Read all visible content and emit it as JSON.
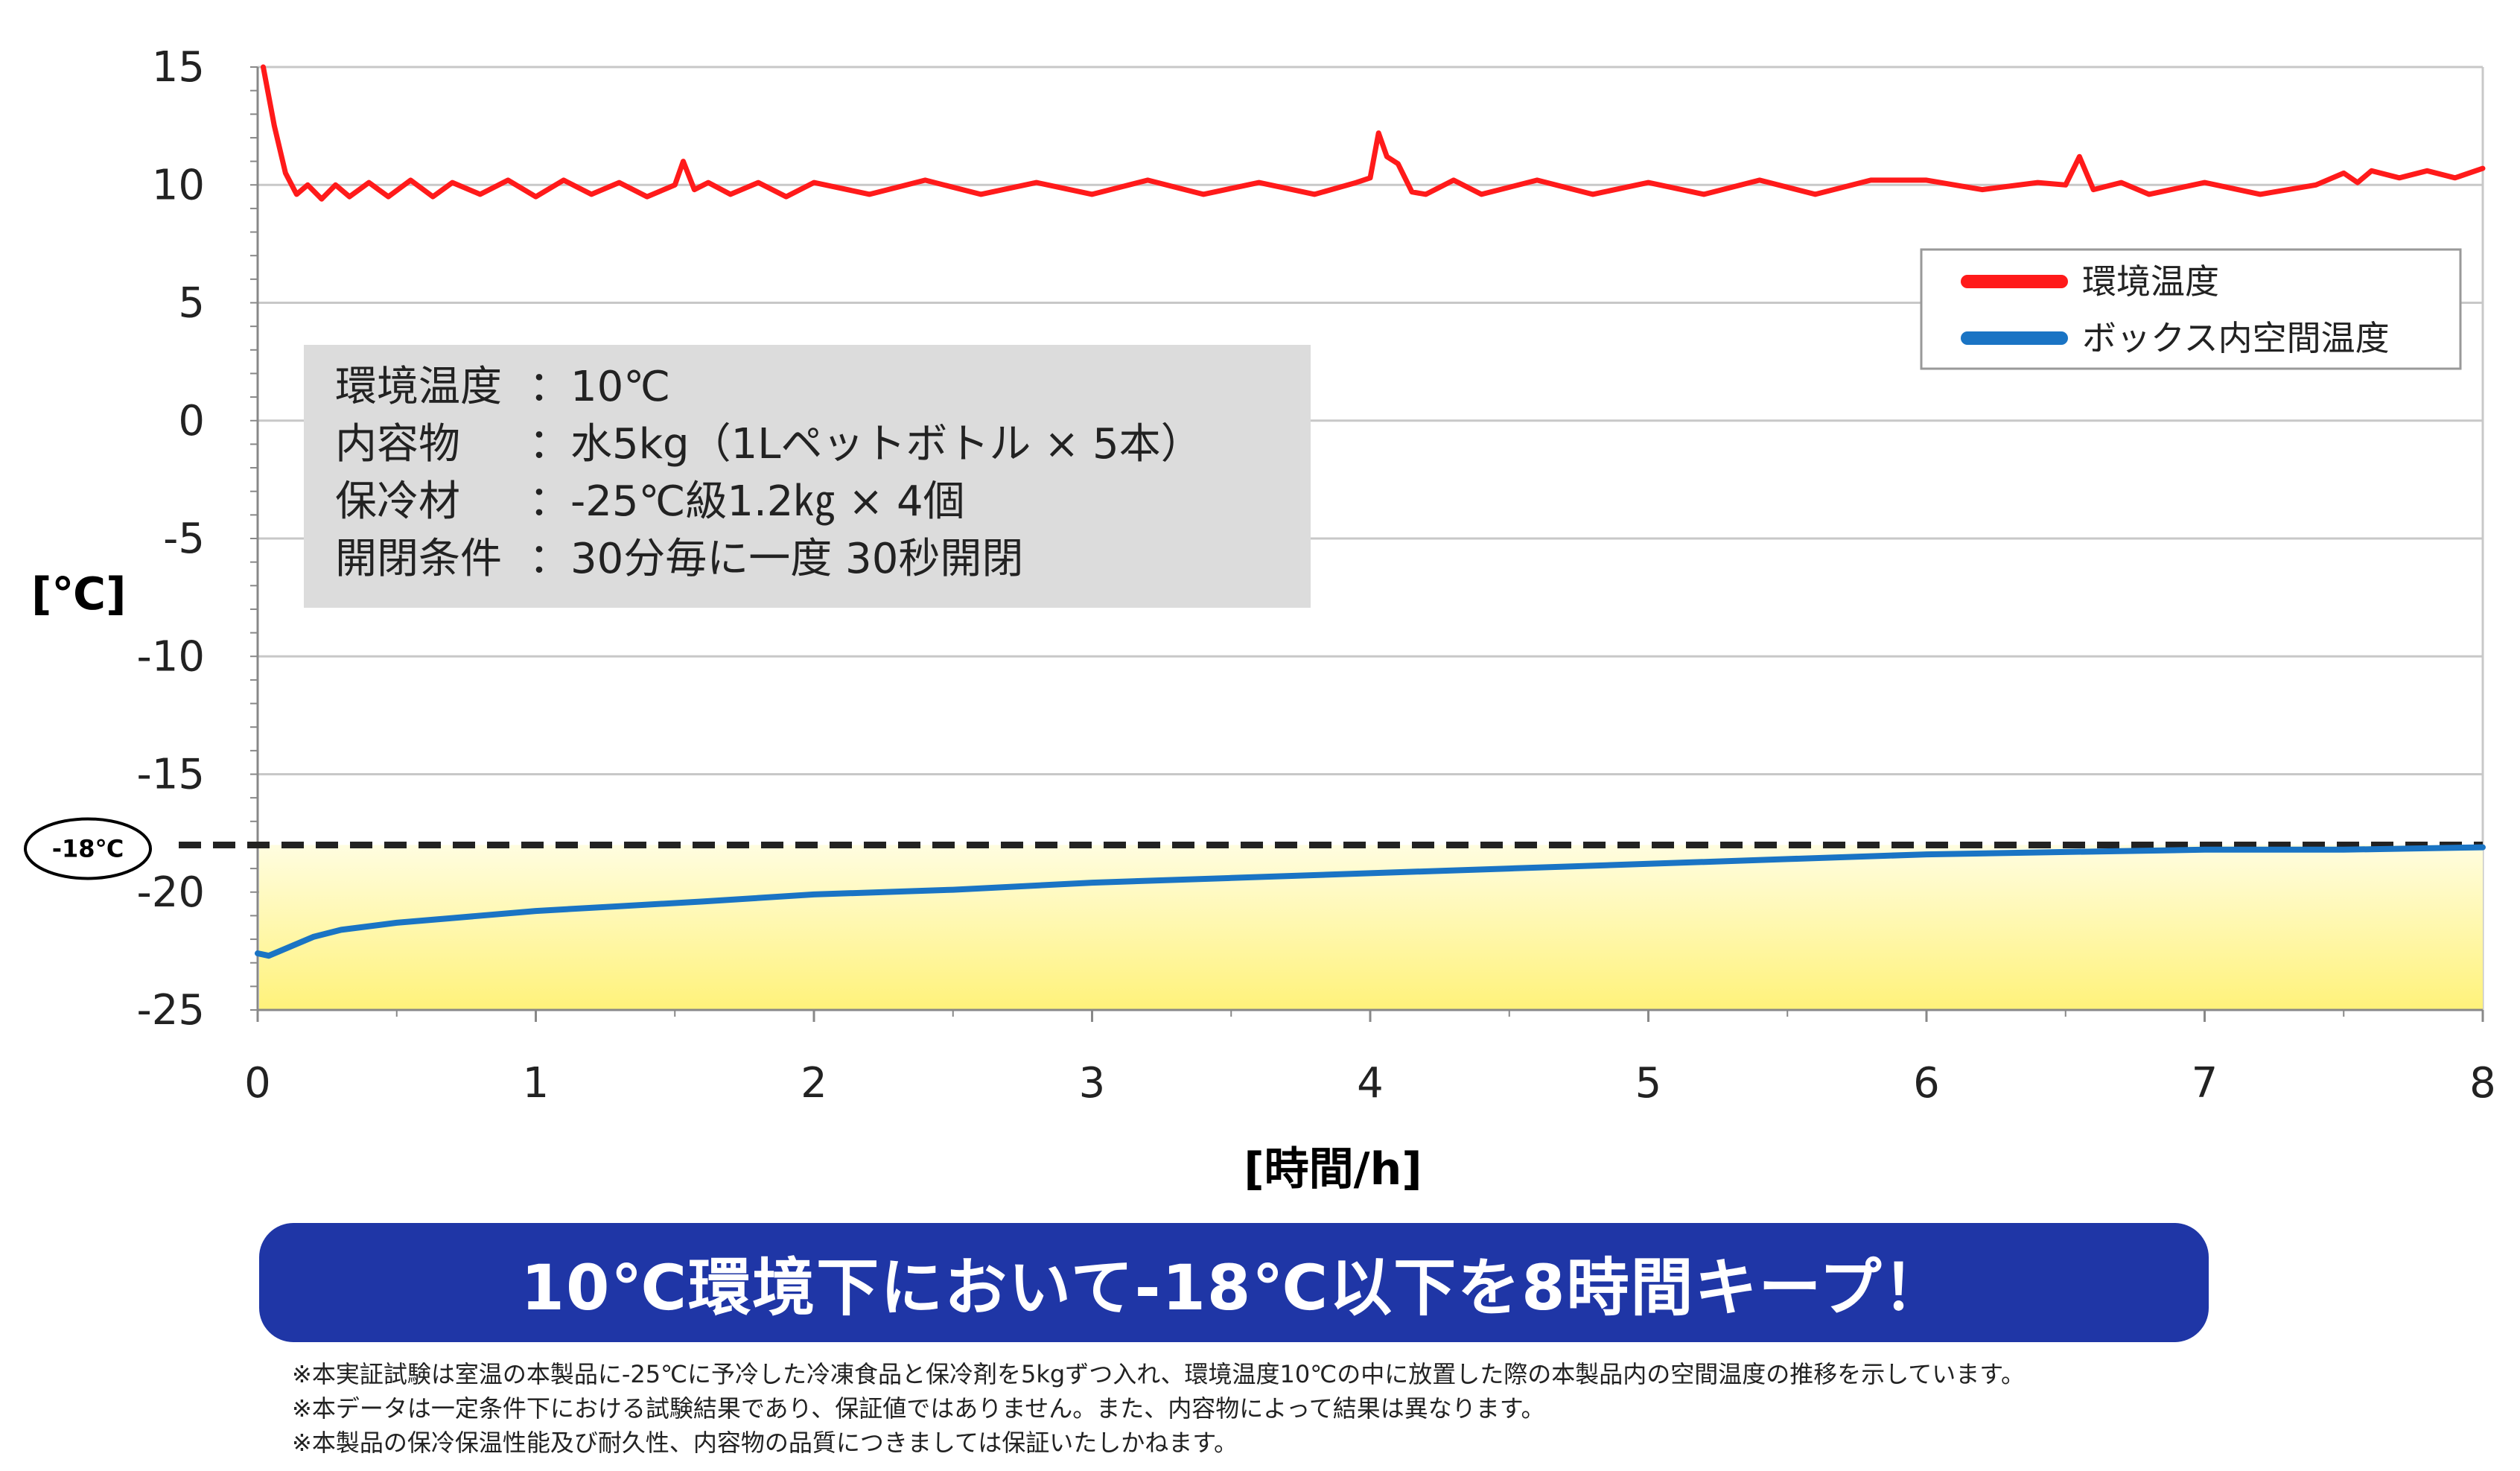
{
  "chart_data": {
    "type": "line",
    "xlabel": "[時間/h]",
    "ylabel": "[℃]",
    "xlim": [
      0,
      8
    ],
    "ylim": [
      -25,
      15
    ],
    "x_ticks": [
      "0",
      "1",
      "2",
      "3",
      "4",
      "5",
      "6",
      "7",
      "8"
    ],
    "y_ticks": [
      "15",
      "10",
      "5",
      "0",
      "-5",
      "-10",
      "-15",
      "-20",
      "-25"
    ],
    "grid": "horizontal",
    "legend_position": "top-right",
    "threshold": {
      "value": -18,
      "label": "-18℃",
      "style": "dashed"
    },
    "series": [
      {
        "name": "環境温度",
        "color": "#ff1a1a",
        "x": [
          0.02,
          0.06,
          0.1,
          0.14,
          0.18,
          0.23,
          0.28,
          0.33,
          0.4,
          0.47,
          0.55,
          0.63,
          0.7,
          0.8,
          0.9,
          1.0,
          1.1,
          1.2,
          1.3,
          1.4,
          1.5,
          1.53,
          1.57,
          1.62,
          1.7,
          1.8,
          1.9,
          2.0,
          2.2,
          2.4,
          2.6,
          2.8,
          3.0,
          3.2,
          3.4,
          3.6,
          3.8,
          3.95,
          4.0,
          4.03,
          4.06,
          4.1,
          4.15,
          4.2,
          4.3,
          4.4,
          4.6,
          4.8,
          5.0,
          5.2,
          5.4,
          5.6,
          5.8,
          6.0,
          6.2,
          6.4,
          6.5,
          6.55,
          6.6,
          6.7,
          6.8,
          7.0,
          7.2,
          7.4,
          7.5,
          7.55,
          7.6,
          7.7,
          7.8,
          7.9,
          8.0
        ],
        "values": [
          15,
          12.5,
          10.5,
          9.6,
          10.0,
          9.4,
          10.0,
          9.5,
          10.1,
          9.5,
          10.2,
          9.5,
          10.1,
          9.6,
          10.2,
          9.5,
          10.2,
          9.6,
          10.1,
          9.5,
          10.0,
          11.0,
          9.8,
          10.1,
          9.6,
          10.1,
          9.5,
          10.1,
          9.6,
          10.2,
          9.6,
          10.1,
          9.6,
          10.2,
          9.6,
          10.1,
          9.6,
          10.1,
          10.3,
          12.2,
          11.2,
          10.9,
          9.7,
          9.6,
          10.2,
          9.6,
          10.2,
          9.6,
          10.1,
          9.6,
          10.2,
          9.6,
          10.2,
          10.2,
          9.8,
          10.1,
          10.0,
          11.2,
          9.8,
          10.1,
          9.6,
          10.1,
          9.6,
          10.0,
          10.5,
          10.1,
          10.6,
          10.3,
          10.6,
          10.3,
          10.7
        ]
      },
      {
        "name": "ボックス内空間温度",
        "color": "#1a74c4",
        "x": [
          0.0,
          0.04,
          0.1,
          0.2,
          0.3,
          0.5,
          0.7,
          1.0,
          1.3,
          1.6,
          2.0,
          2.5,
          3.0,
          3.5,
          4.0,
          4.5,
          5.0,
          5.5,
          6.0,
          6.5,
          7.0,
          7.5,
          8.0
        ],
        "values": [
          -22.6,
          -22.7,
          -22.4,
          -21.9,
          -21.6,
          -21.3,
          -21.1,
          -20.8,
          -20.6,
          -20.4,
          -20.1,
          -19.9,
          -19.6,
          -19.4,
          -19.2,
          -19.0,
          -18.8,
          -18.6,
          -18.4,
          -18.3,
          -18.2,
          -18.2,
          -18.1
        ]
      }
    ]
  },
  "info_box": {
    "lines": [
      {
        "label": "環境温度",
        "value": "：10℃"
      },
      {
        "label": "内容物",
        "value": "：水5kg（1Lペットボトル × 5本）"
      },
      {
        "label": "保冷材",
        "value": "：-25℃級1.2㎏ × 4個"
      },
      {
        "label": "開閉条件",
        "value": "：30分毎に一度 30秒開閉"
      }
    ]
  },
  "colors": {
    "banner": "#1f36a6",
    "fill_top": "#fffde0",
    "fill_bottom": "#fff27a",
    "threshold": "#222222",
    "info_box": "#dcdcdc"
  },
  "banner": {
    "text": "10℃環境下において-18℃以下を8時間キープ！"
  },
  "footnotes": [
    "※本実証試験は室温の本製品に-25℃に予冷した冷凍食品と保冷剤を5kgずつ入れ、環境温度10℃の中に放置した際の本製品内の空間温度の推移を示しています。",
    "※本データは一定条件下における試験結果であり、保証値ではありません。また、内容物によって結果は異なります。",
    "※本製品の保冷保温性能及び耐久性、内容物の品質につきましては保証いたしかねます。"
  ]
}
